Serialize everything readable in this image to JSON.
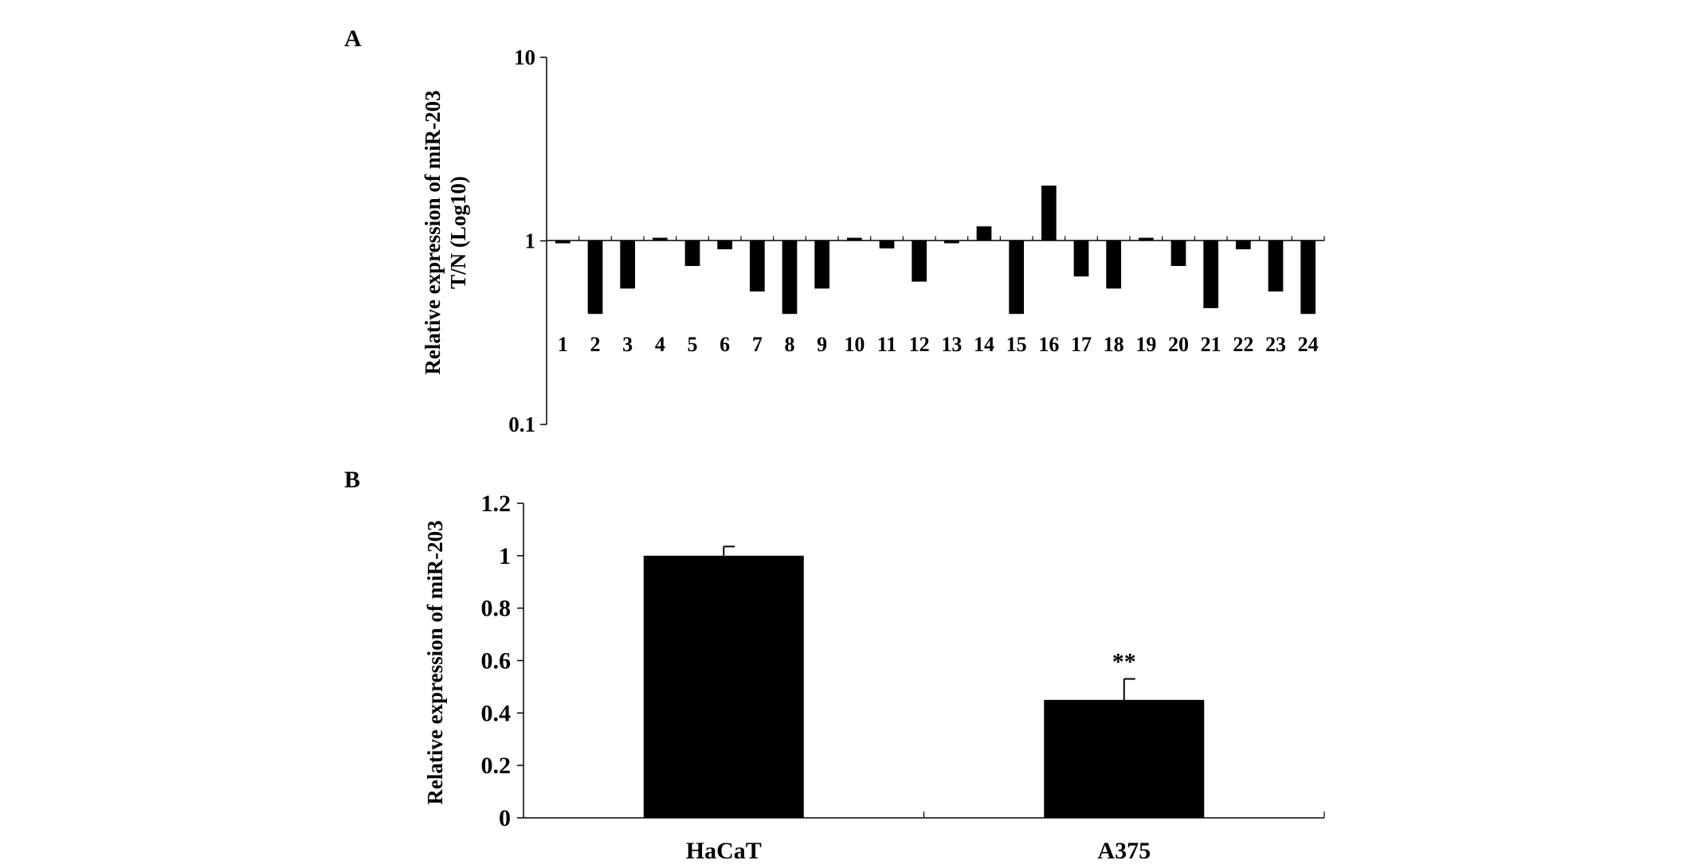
{
  "chart_data": [
    {
      "panel": "A",
      "type": "bar",
      "scale": "log10",
      "baseline": 1,
      "ylabel": "Relative expression of miR-203",
      "ylabel_line2": "T/N (Log10)",
      "xlabel": "",
      "ylim": [
        0.1,
        10
      ],
      "yticks": [
        "10",
        "1",
        "0.1"
      ],
      "ytick_values": [
        10,
        1,
        0.1
      ],
      "categories": [
        "1",
        "2",
        "3",
        "4",
        "5",
        "6",
        "7",
        "8",
        "9",
        "10",
        "11",
        "12",
        "13",
        "14",
        "15",
        "16",
        "17",
        "18",
        "19",
        "20",
        "21",
        "22",
        "23",
        "24"
      ],
      "values": [
        0.97,
        0.4,
        0.55,
        1.04,
        0.73,
        0.9,
        0.53,
        0.4,
        0.55,
        1.04,
        0.91,
        0.6,
        0.98,
        1.2,
        0.4,
        2.0,
        0.64,
        0.55,
        1.04,
        0.73,
        0.43,
        0.9,
        0.53,
        0.4
      ],
      "bar_color": "#000000",
      "grid": false
    },
    {
      "panel": "B",
      "type": "bar",
      "ylabel": "Relative expression of miR-203",
      "xlabel": "",
      "ylim": [
        0,
        1.2
      ],
      "yticks": [
        "1.2",
        "1",
        "0.8",
        "0.6",
        "0.4",
        "0.2",
        "0"
      ],
      "ytick_values": [
        1.2,
        1,
        0.8,
        0.6,
        0.4,
        0.2,
        0
      ],
      "categories": [
        "HaCaT",
        "A375"
      ],
      "values": [
        1.0,
        0.45
      ],
      "errors": [
        0.035,
        0.08
      ],
      "annotations": [
        "",
        "**"
      ],
      "bar_color": "#000000",
      "grid": false
    }
  ]
}
